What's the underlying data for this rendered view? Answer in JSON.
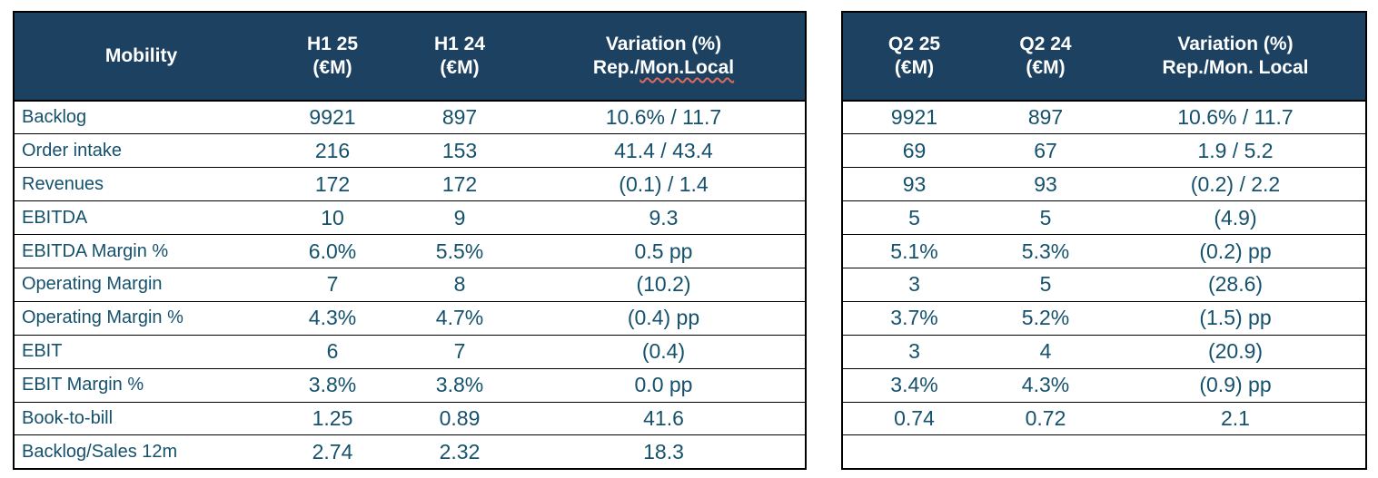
{
  "colors": {
    "header_bg": "#1d4161",
    "header_text": "#ffffff",
    "body_text": "#15516c",
    "border": "#000000",
    "spellcheck_squiggle": "#e0695f"
  },
  "left_table": {
    "title": "Mobility",
    "columns": [
      {
        "line1": "H1 25",
        "line2": "(€M)"
      },
      {
        "line1": "H1 24",
        "line2": "(€M)"
      },
      {
        "line1": "Variation (%)",
        "line2_prefix": "Rep./",
        "line2_squiggle": "Mon.Local"
      }
    ],
    "rows": [
      {
        "label": "Backlog",
        "v1": "9921",
        "v2": "897",
        "variation": "10.6% / 11.7"
      },
      {
        "label": "Order intake",
        "v1": "216",
        "v2": "153",
        "variation": "41.4 / 43.4"
      },
      {
        "label": "Revenues",
        "v1": "172",
        "v2": "172",
        "variation": "(0.1) / 1.4"
      },
      {
        "label": "EBITDA",
        "v1": "10",
        "v2": "9",
        "variation": "9.3"
      },
      {
        "label": "EBITDA Margin %",
        "v1": "6.0%",
        "v2": "5.5%",
        "variation": "0.5 pp"
      },
      {
        "label": "Operating Margin",
        "v1": "7",
        "v2": "8",
        "variation": "(10.2)"
      },
      {
        "label": "Operating Margin %",
        "v1": "4.3%",
        "v2": "4.7%",
        "variation": "(0.4) pp"
      },
      {
        "label": "EBIT",
        "v1": "6",
        "v2": "7",
        "variation": "(0.4)"
      },
      {
        "label": "EBIT Margin %",
        "v1": "3.8%",
        "v2": "3.8%",
        "variation": "0.0 pp"
      },
      {
        "label": "Book-to-bill",
        "v1": "1.25",
        "v2": "0.89",
        "variation": "41.6"
      },
      {
        "label": "Backlog/Sales 12m",
        "v1": "2.74",
        "v2": "2.32",
        "variation": "18.3"
      }
    ]
  },
  "right_table": {
    "columns": [
      {
        "line1": "Q2 25",
        "line2": "(€M)"
      },
      {
        "line1": "Q2 24",
        "line2": "(€M)"
      },
      {
        "line1": "Variation (%)",
        "line2": "Rep./Mon. Local"
      }
    ],
    "rows": [
      {
        "v1": "9921",
        "v2": "897",
        "variation": "10.6% / 11.7"
      },
      {
        "v1": "69",
        "v2": "67",
        "variation": "1.9 / 5.2"
      },
      {
        "v1": "93",
        "v2": "93",
        "variation": "(0.2) / 2.2"
      },
      {
        "v1": "5",
        "v2": "5",
        "variation": "(4.9)"
      },
      {
        "v1": "5.1%",
        "v2": "5.3%",
        "variation": "(0.2) pp"
      },
      {
        "v1": "3",
        "v2": "5",
        "variation": "(28.6)"
      },
      {
        "v1": "3.7%",
        "v2": "5.2%",
        "variation": "(1.5) pp"
      },
      {
        "v1": "3",
        "v2": "4",
        "variation": "(20.9)"
      },
      {
        "v1": "3.4%",
        "v2": "4.3%",
        "variation": "(0.9) pp"
      },
      {
        "v1": "0.74",
        "v2": "0.72",
        "variation": "2.1"
      },
      {
        "v1": "",
        "v2": "",
        "variation": ""
      }
    ]
  }
}
